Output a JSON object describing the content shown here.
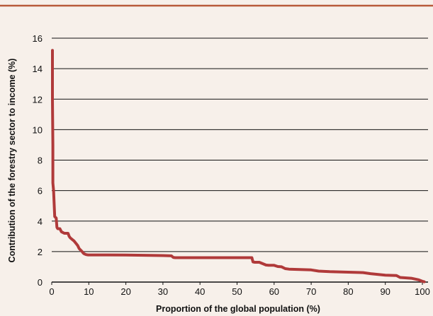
{
  "chart_data": {
    "type": "line",
    "title": "",
    "xlabel": "Proportion of the global population (%)",
    "ylabel": "Contribution of the forestry sector to income (%)",
    "xlim": [
      0,
      100
    ],
    "ylim": [
      0,
      16
    ],
    "xticks": [
      0,
      10,
      20,
      30,
      40,
      50,
      60,
      70,
      80,
      90,
      100
    ],
    "yticks": [
      0,
      2,
      4,
      6,
      8,
      10,
      12,
      14,
      16
    ],
    "grid": "horizontal",
    "legend": "none",
    "colors": {
      "background": "#f7f0ea",
      "top_rule": "#b85a3a",
      "series": "#b03a3a",
      "grid": "#111111"
    },
    "series": [
      {
        "x": [
          0.2,
          0.2,
          0.3,
          0.3,
          0.5,
          0.8,
          1.2,
          1.4,
          1.6,
          2.2,
          2.6,
          3.4,
          4.4,
          4.7,
          5.0,
          6.0,
          7.0,
          7.4,
          8.2,
          8.5,
          8.8,
          9.3,
          9.8,
          10.4,
          15,
          20,
          25,
          30,
          32.3,
          32.8,
          33.3,
          34,
          40,
          45,
          50,
          53,
          54,
          54.3,
          54.8,
          56,
          57,
          57.8,
          58.5,
          60,
          61,
          62,
          63,
          64,
          70,
          72,
          75,
          80,
          84,
          86,
          90,
          93,
          94,
          97,
          99,
          100,
          100.5
        ],
        "y": [
          15.2,
          12.0,
          9.0,
          6.5,
          6.0,
          4.3,
          4.2,
          3.6,
          3.5,
          3.5,
          3.3,
          3.2,
          3.2,
          3.0,
          2.9,
          2.7,
          2.4,
          2.2,
          2.0,
          1.9,
          1.85,
          1.8,
          1.78,
          1.78,
          1.78,
          1.77,
          1.76,
          1.74,
          1.72,
          1.62,
          1.6,
          1.6,
          1.6,
          1.6,
          1.6,
          1.6,
          1.6,
          1.32,
          1.3,
          1.3,
          1.2,
          1.12,
          1.1,
          1.1,
          1.02,
          1.0,
          0.88,
          0.85,
          0.8,
          0.72,
          0.68,
          0.65,
          0.62,
          0.55,
          0.45,
          0.43,
          0.3,
          0.25,
          0.15,
          0.05,
          0.02
        ]
      }
    ]
  }
}
